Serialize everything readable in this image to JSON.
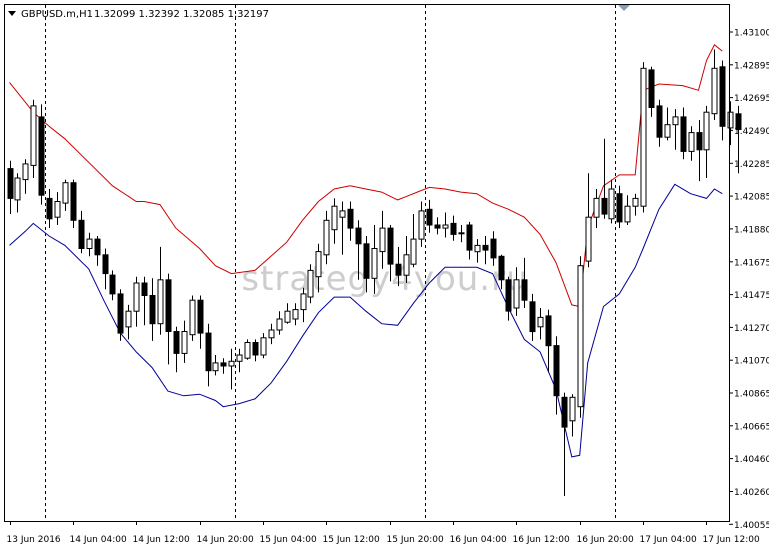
{
  "header": {
    "symbol": "GBPUSD.m,H1",
    "ohlc": "1.32099 1.32392 1.32085 1.32197"
  },
  "watermark": "strategy4you.ru",
  "colors": {
    "background": "#ffffff",
    "frame": "#000000",
    "upper_band": "#cc0000",
    "lower_band": "#000099",
    "bull_body": "#ffffff",
    "bear_body": "#000000",
    "grid": "#000000",
    "watermark": "#c8c8c8"
  },
  "chart_data": {
    "type": "candlestick",
    "title": "GBPUSD.m,H1",
    "ylim": [
      1.40035,
      1.43182
    ],
    "grid": "vertical dashed day separators",
    "y_ticks": [
      "1.43100",
      "1.42895",
      "1.42695",
      "1.42490",
      "1.42285",
      "1.42085",
      "1.41880",
      "1.41675",
      "1.41475",
      "1.41270",
      "1.41070",
      "1.40865",
      "1.40665",
      "1.40460",
      "1.40260",
      "1.40055"
    ],
    "x_ticks": [
      {
        "bar": 0,
        "label": "13 Jun 2016"
      },
      {
        "bar": 8,
        "label": "14 Jun 04:00"
      },
      {
        "bar": 16,
        "label": "14 Jun 12:00"
      },
      {
        "bar": 24,
        "label": "14 Jun 20:00"
      },
      {
        "bar": 32,
        "label": "15 Jun 04:00"
      },
      {
        "bar": 40,
        "label": "15 Jun 12:00"
      },
      {
        "bar": 48,
        "label": "15 Jun 20:00"
      },
      {
        "bar": 56,
        "label": "16 Jun 04:00"
      },
      {
        "bar": 64,
        "label": "16 Jun 12:00"
      },
      {
        "bar": 72,
        "label": "16 Jun 20:00"
      },
      {
        "bar": 80,
        "label": "17 Jun 04:00"
      },
      {
        "bar": 88,
        "label": "17 Jun 12:00"
      }
    ],
    "day_separators": [
      4,
      28,
      52,
      76
    ],
    "candles": [
      [
        1.4231,
        1.4212,
        1.4236,
        1.4202
      ],
      [
        1.4211,
        1.4225,
        1.4228,
        1.4203
      ],
      [
        1.4224,
        1.4234,
        1.4237,
        1.4215
      ],
      [
        1.4233,
        1.4271,
        1.4275,
        1.4225
      ],
      [
        1.4264,
        1.4214,
        1.4272,
        1.4208
      ],
      [
        1.4212,
        1.4199,
        1.4218,
        1.4193
      ],
      [
        1.42,
        1.421,
        1.4216,
        1.4195
      ],
      [
        1.4209,
        1.4222,
        1.4224,
        1.4204
      ],
      [
        1.4222,
        1.4198,
        1.4224,
        1.4193
      ],
      [
        1.4198,
        1.418,
        1.4204,
        1.4177
      ],
      [
        1.418,
        1.4186,
        1.419,
        1.4175
      ],
      [
        1.4186,
        1.4176,
        1.4188,
        1.4169
      ],
      [
        1.4176,
        1.4164,
        1.418,
        1.4154
      ],
      [
        1.4163,
        1.4151,
        1.4166,
        1.4147
      ],
      [
        1.4151,
        1.4126,
        1.4154,
        1.4121
      ],
      [
        1.413,
        1.414,
        1.4144,
        1.4122
      ],
      [
        1.414,
        1.4158,
        1.4162,
        1.413
      ],
      [
        1.4158,
        1.415,
        1.4162,
        1.4131
      ],
      [
        1.415,
        1.4132,
        1.4161,
        1.4121
      ],
      [
        1.4132,
        1.416,
        1.4181,
        1.4125
      ],
      [
        1.416,
        1.4127,
        1.4164,
        1.4106
      ],
      [
        1.4127,
        1.4113,
        1.413,
        1.4101
      ],
      [
        1.4113,
        1.4127,
        1.4134,
        1.4107
      ],
      [
        1.4125,
        1.4147,
        1.415,
        1.4121
      ],
      [
        1.4147,
        1.4126,
        1.415,
        1.4116
      ],
      [
        1.4126,
        1.4102,
        1.4132,
        1.4092
      ],
      [
        1.4102,
        1.4107,
        1.4112,
        1.4099
      ],
      [
        1.4107,
        1.4105,
        1.411,
        1.41
      ],
      [
        1.4105,
        1.4108,
        1.4116,
        1.409
      ],
      [
        1.4108,
        1.4112,
        1.4116,
        1.4101
      ],
      [
        1.411,
        1.412,
        1.4122,
        1.4109
      ],
      [
        1.412,
        1.4112,
        1.4122,
        1.4108
      ],
      [
        1.4112,
        1.4123,
        1.4126,
        1.411
      ],
      [
        1.4123,
        1.4128,
        1.4132,
        1.4119
      ],
      [
        1.4128,
        1.4135,
        1.414,
        1.4125
      ],
      [
        1.4133,
        1.414,
        1.4145,
        1.4132
      ],
      [
        1.4135,
        1.4141,
        1.4145,
        1.4131
      ],
      [
        1.4141,
        1.4151,
        1.4155,
        1.4133
      ],
      [
        1.4149,
        1.4166,
        1.417,
        1.4145
      ],
      [
        1.4162,
        1.4178,
        1.4183,
        1.4152
      ],
      [
        1.4176,
        1.4198,
        1.4204,
        1.417
      ],
      [
        1.4192,
        1.4207,
        1.4212,
        1.4183
      ],
      [
        1.42,
        1.4204,
        1.421,
        1.4176
      ],
      [
        1.4205,
        1.4193,
        1.421,
        1.4185
      ],
      [
        1.4193,
        1.4183,
        1.4198,
        1.416
      ],
      [
        1.4183,
        1.4161,
        1.4188,
        1.4152
      ],
      [
        1.4161,
        1.418,
        1.4195,
        1.4151
      ],
      [
        1.4178,
        1.4193,
        1.4204,
        1.4167
      ],
      [
        1.4193,
        1.417,
        1.4195,
        1.4159
      ],
      [
        1.417,
        1.4163,
        1.4181,
        1.4156
      ],
      [
        1.4163,
        1.4176,
        1.4188,
        1.4158
      ],
      [
        1.417,
        1.4186,
        1.4202,
        1.4168
      ],
      [
        1.4186,
        1.4204,
        1.421,
        1.4181
      ],
      [
        1.4205,
        1.4195,
        1.4211,
        1.419
      ],
      [
        1.4195,
        1.4193,
        1.42,
        1.4189
      ],
      [
        1.4193,
        1.4195,
        1.4203,
        1.4187
      ],
      [
        1.4196,
        1.4189,
        1.4201,
        1.4185
      ],
      [
        1.419,
        1.419,
        1.4195,
        1.4184
      ],
      [
        1.4195,
        1.4179,
        1.4197,
        1.4173
      ],
      [
        1.4178,
        1.4182,
        1.4186,
        1.4171
      ],
      [
        1.4182,
        1.4179,
        1.4188,
        1.417
      ],
      [
        1.4186,
        1.4174,
        1.4191,
        1.4169
      ],
      [
        1.4175,
        1.416,
        1.4176,
        1.4154
      ],
      [
        1.416,
        1.414,
        1.4162,
        1.4134
      ],
      [
        1.4142,
        1.416,
        1.4168,
        1.4137
      ],
      [
        1.416,
        1.4147,
        1.4174,
        1.4142
      ],
      [
        1.4146,
        1.4127,
        1.4151,
        1.4121
      ],
      [
        1.413,
        1.4136,
        1.4142,
        1.4122
      ],
      [
        1.4137,
        1.4118,
        1.4141,
        1.4101
      ],
      [
        1.4118,
        1.4086,
        1.4124,
        1.4074
      ],
      [
        1.4085,
        1.4066,
        1.4088,
        1.4022
      ],
      [
        1.407,
        1.4085,
        1.4087,
        1.406
      ],
      [
        1.4079,
        1.4169,
        1.4175,
        1.4072
      ],
      [
        1.4172,
        1.42,
        1.4228,
        1.4168
      ],
      [
        1.42,
        1.4212,
        1.4218,
        1.4193
      ],
      [
        1.4212,
        1.4202,
        1.425,
        1.4199
      ],
      [
        1.4199,
        1.4218,
        1.4224,
        1.4196
      ],
      [
        1.4215,
        1.4197,
        1.422,
        1.4193
      ],
      [
        1.4197,
        1.4207,
        1.4214,
        1.4195
      ],
      [
        1.4207,
        1.4212,
        1.4215,
        1.4201
      ],
      [
        1.4207,
        1.4295,
        1.4299,
        1.4203
      ],
      [
        1.4294,
        1.427,
        1.4296,
        1.4264
      ],
      [
        1.4271,
        1.4251,
        1.4275,
        1.4245
      ],
      [
        1.4251,
        1.4259,
        1.427,
        1.4249
      ],
      [
        1.4259,
        1.4264,
        1.4269,
        1.4243
      ],
      [
        1.4264,
        1.4242,
        1.427,
        1.4237
      ],
      [
        1.4242,
        1.4254,
        1.4258,
        1.4236
      ],
      [
        1.4254,
        1.4243,
        1.4262,
        1.4223
      ],
      [
        1.4243,
        1.4267,
        1.4271,
        1.4225
      ],
      [
        1.4266,
        1.4295,
        1.4307,
        1.4262
      ],
      [
        1.4296,
        1.4258,
        1.43,
        1.4249
      ],
      [
        1.4257,
        1.4267,
        1.4274,
        1.4246
      ],
      [
        1.4266,
        1.4256,
        1.4271,
        1.4228
      ]
    ],
    "upper_band": [
      [
        0,
        1.4286
      ],
      [
        3,
        1.4267
      ],
      [
        5,
        1.4258
      ],
      [
        7,
        1.425
      ],
      [
        10,
        1.4235
      ],
      [
        13,
        1.422
      ],
      [
        16,
        1.421
      ],
      [
        17,
        1.421
      ],
      [
        19,
        1.4208
      ],
      [
        21,
        1.4193
      ],
      [
        24,
        1.418
      ],
      [
        26,
        1.4169
      ],
      [
        28,
        1.4164
      ],
      [
        31,
        1.4166
      ],
      [
        33,
        1.4175
      ],
      [
        35,
        1.4184
      ],
      [
        37,
        1.4198
      ],
      [
        39,
        1.421
      ],
      [
        41,
        1.4218
      ],
      [
        43,
        1.422
      ],
      [
        45,
        1.4218
      ],
      [
        47,
        1.4216
      ],
      [
        49,
        1.4211
      ],
      [
        50,
        1.4213
      ],
      [
        52,
        1.4217
      ],
      [
        53,
        1.4219
      ],
      [
        55,
        1.4218
      ],
      [
        57,
        1.4216
      ],
      [
        59,
        1.4215
      ],
      [
        61,
        1.4209
      ],
      [
        63,
        1.4205
      ],
      [
        65,
        1.42
      ],
      [
        67,
        1.4189
      ],
      [
        69,
        1.4171
      ],
      [
        71,
        1.4144
      ],
      [
        72,
        1.4143
      ],
      [
        73,
        1.4193
      ],
      [
        75,
        1.422
      ],
      [
        77,
        1.4227
      ],
      [
        79,
        1.4227
      ],
      [
        80,
        1.4281
      ],
      [
        82,
        1.4285
      ],
      [
        85,
        1.4284
      ],
      [
        87,
        1.4281
      ],
      [
        88,
        1.43
      ],
      [
        89,
        1.431
      ],
      [
        90,
        1.4306
      ]
    ],
    "lower_band": [
      [
        0,
        1.4182
      ],
      [
        2,
        1.4191
      ],
      [
        3,
        1.4196
      ],
      [
        5,
        1.4188
      ],
      [
        7,
        1.4182
      ],
      [
        10,
        1.4167
      ],
      [
        12,
        1.4146
      ],
      [
        14,
        1.4126
      ],
      [
        16,
        1.4114
      ],
      [
        18,
        1.4104
      ],
      [
        20,
        1.4089
      ],
      [
        22,
        1.4086
      ],
      [
        24,
        1.4087
      ],
      [
        26,
        1.4083
      ],
      [
        27,
        1.4079
      ],
      [
        29,
        1.4081
      ],
      [
        31,
        1.4084
      ],
      [
        33,
        1.4094
      ],
      [
        35,
        1.4108
      ],
      [
        37,
        1.4124
      ],
      [
        39,
        1.4139
      ],
      [
        41,
        1.4149
      ],
      [
        43,
        1.4149
      ],
      [
        45,
        1.414
      ],
      [
        47,
        1.4132
      ],
      [
        49,
        1.4131
      ],
      [
        51,
        1.4145
      ],
      [
        53,
        1.4158
      ],
      [
        55,
        1.4168
      ],
      [
        57,
        1.4168
      ],
      [
        59,
        1.4168
      ],
      [
        61,
        1.4164
      ],
      [
        63,
        1.4142
      ],
      [
        65,
        1.4122
      ],
      [
        67,
        1.4114
      ],
      [
        69,
        1.409
      ],
      [
        71,
        1.4047
      ],
      [
        72,
        1.4048
      ],
      [
        73,
        1.4107
      ],
      [
        75,
        1.4143
      ],
      [
        77,
        1.4151
      ],
      [
        79,
        1.4168
      ],
      [
        80,
        1.418
      ],
      [
        82,
        1.4205
      ],
      [
        84,
        1.4221
      ],
      [
        86,
        1.4215
      ],
      [
        88,
        1.4212
      ],
      [
        89,
        1.4218
      ],
      [
        90,
        1.4215
      ]
    ]
  }
}
